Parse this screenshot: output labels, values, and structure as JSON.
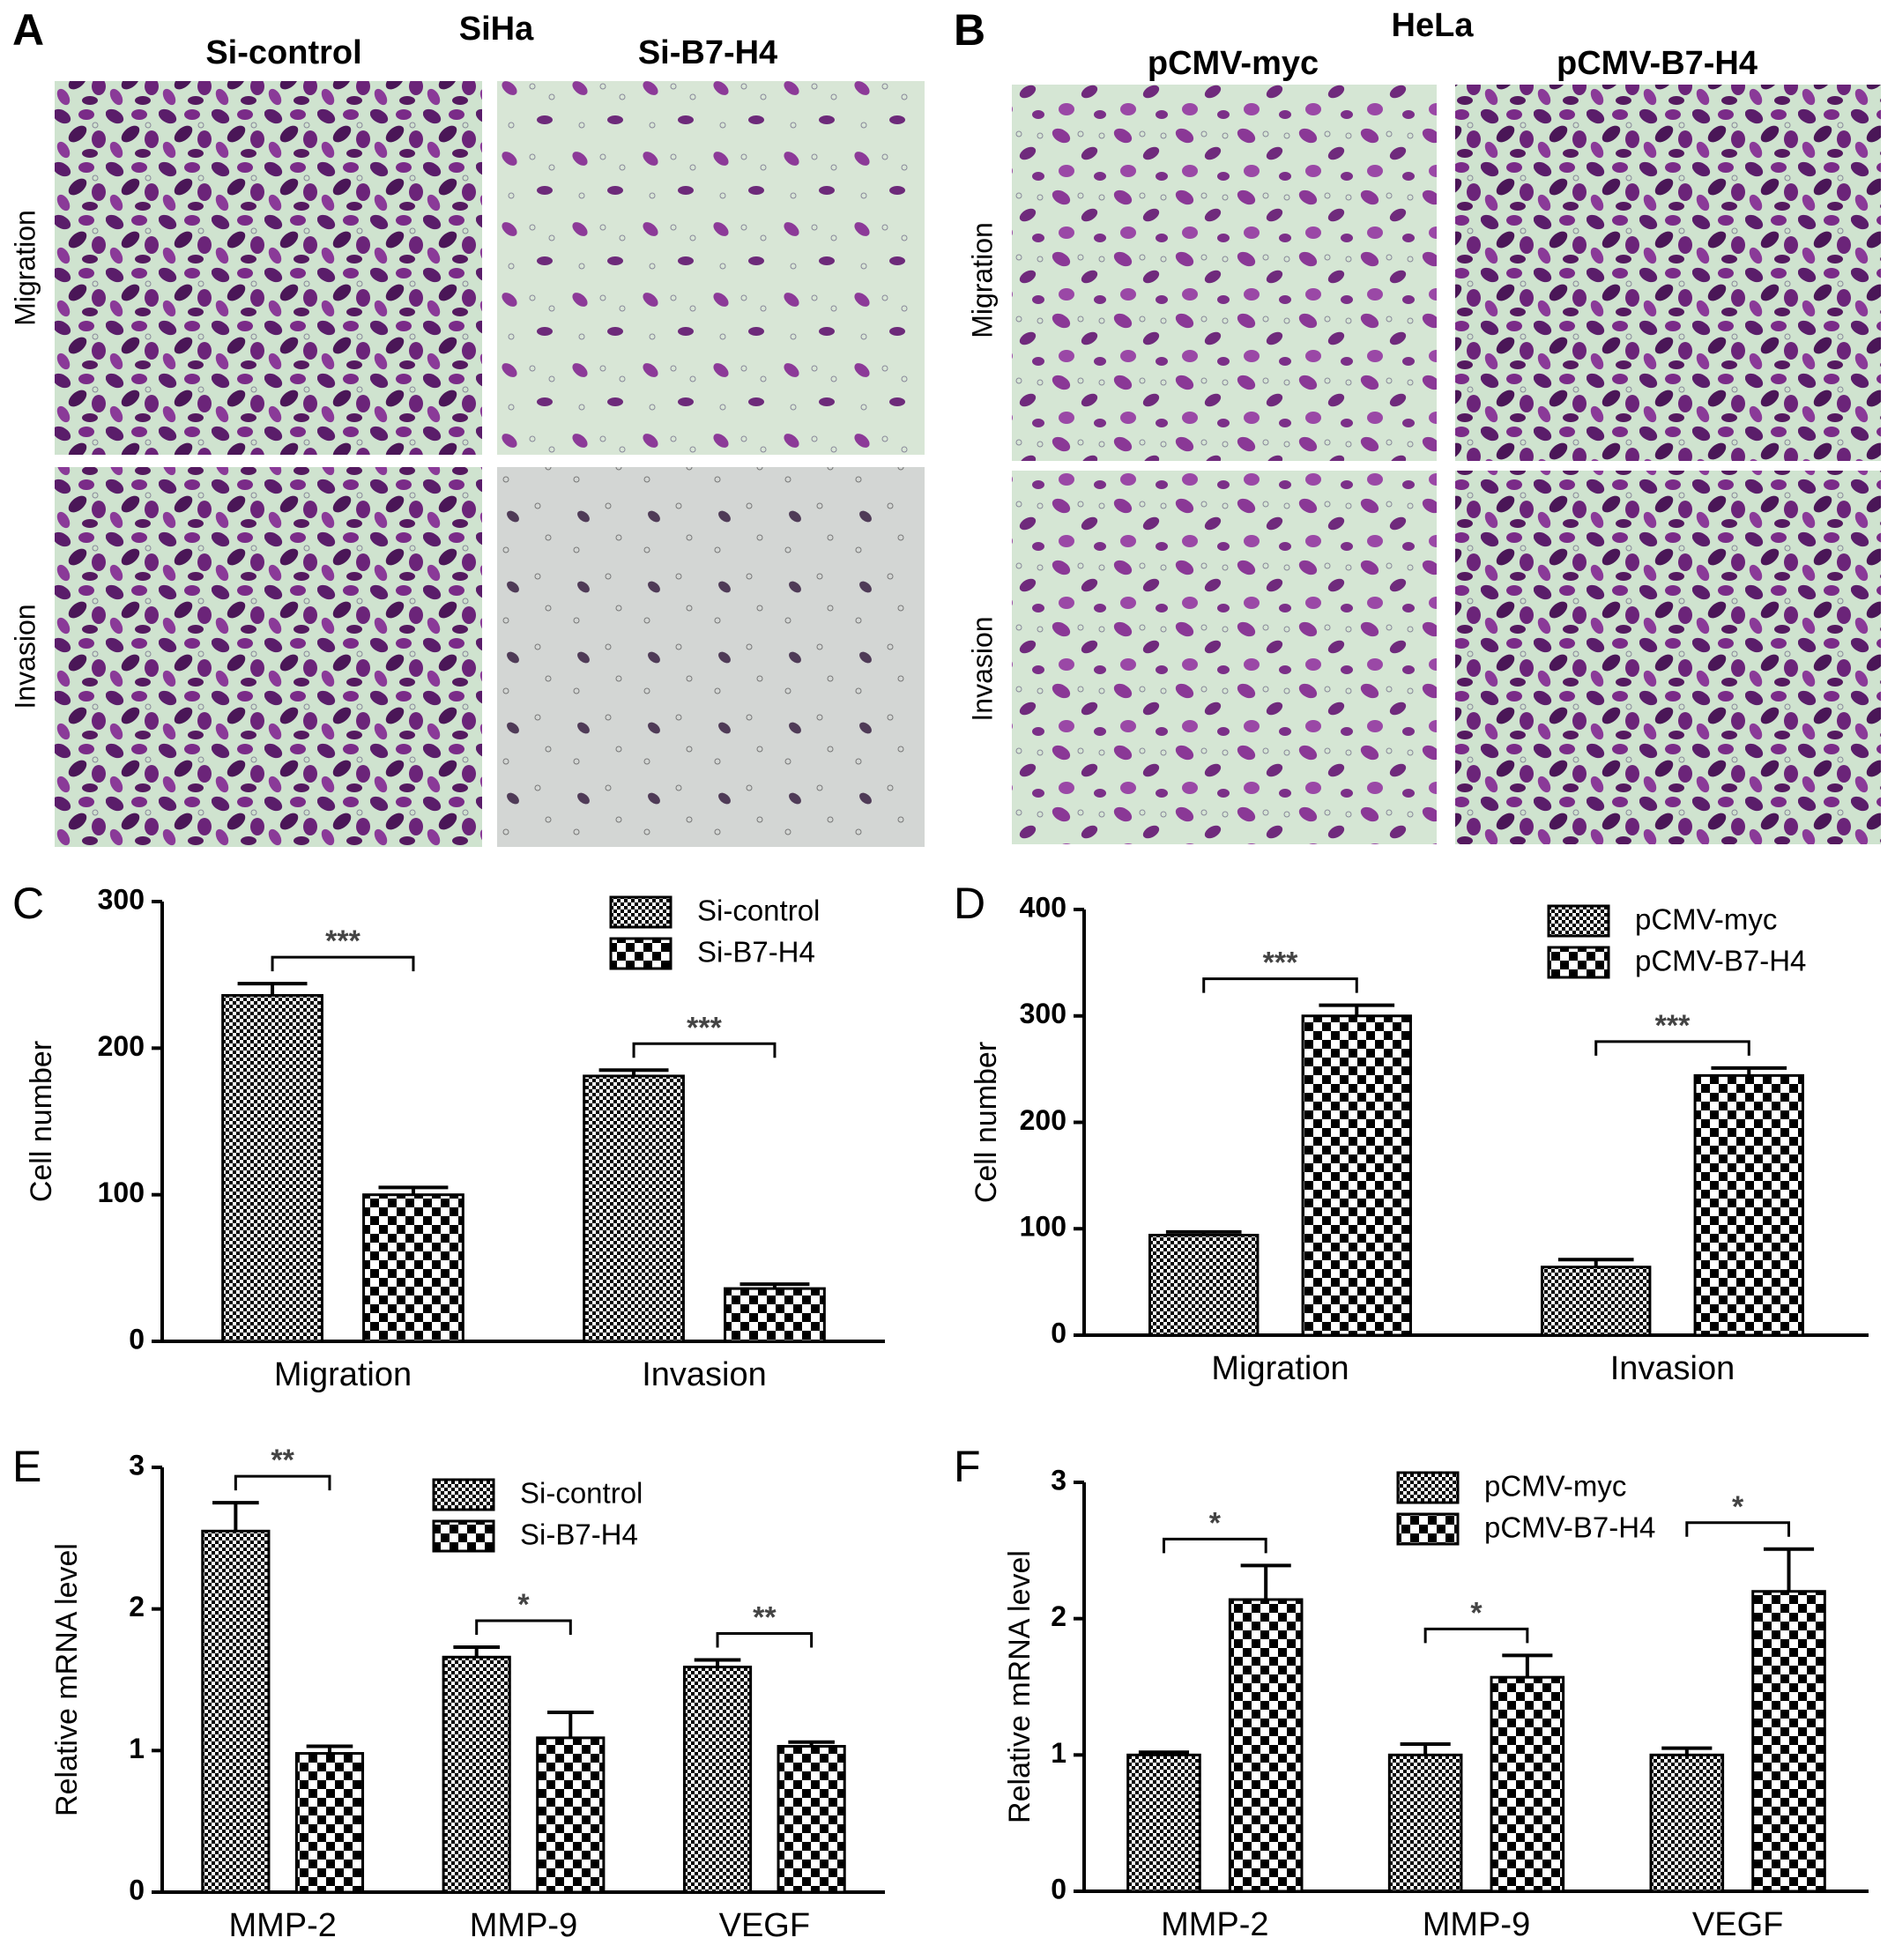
{
  "figure": {
    "A": {
      "letter": "A",
      "cell_line": "SiHa",
      "columns": [
        "Si-control",
        "Si-B7-H4"
      ],
      "rows": [
        "Migration",
        "Invasion"
      ]
    },
    "B": {
      "letter": "B",
      "cell_line": "HeLa",
      "columns": [
        "pCMV-myc",
        "pCMV-B7-H4"
      ],
      "rows": [
        "Migration",
        "Invasion"
      ]
    }
  },
  "chart_data": [
    {
      "type": "bar",
      "panel": "C",
      "ylabel": "Cell number",
      "categories": [
        "Migration",
        "Invasion"
      ],
      "series": [
        {
          "name": "Si-control",
          "color": "#000000",
          "pattern": "fine-checker",
          "values": [
            236,
            181
          ],
          "errors": [
            8,
            4
          ]
        },
        {
          "name": "Si-B7-H4",
          "color": "#000000",
          "pattern": "coarse-checker",
          "values": [
            100,
            36
          ],
          "errors": [
            5,
            3
          ]
        }
      ],
      "annotations": [
        "***",
        "***"
      ],
      "ylim": [
        0,
        300
      ],
      "yticks": [
        0,
        100,
        200,
        300
      ]
    },
    {
      "type": "bar",
      "panel": "D",
      "ylabel": "Cell number",
      "categories": [
        "Migration",
        "Invasion"
      ],
      "series": [
        {
          "name": "pCMV-myc",
          "color": "#000000",
          "pattern": "fine-checker",
          "values": [
            94,
            64
          ],
          "errors": [
            3,
            7
          ]
        },
        {
          "name": "pCMV-B7-H4",
          "color": "#000000",
          "pattern": "coarse-checker",
          "values": [
            300,
            244
          ],
          "errors": [
            10,
            7
          ]
        }
      ],
      "annotations": [
        "***",
        "***"
      ],
      "ylim": [
        0,
        400
      ],
      "yticks": [
        0,
        100,
        200,
        300,
        400
      ]
    },
    {
      "type": "bar",
      "panel": "E",
      "ylabel": "Relative mRNA level",
      "categories": [
        "MMP-2",
        "MMP-9",
        "VEGF"
      ],
      "series": [
        {
          "name": "Si-control",
          "color": "#000000",
          "pattern": "fine-checker",
          "values": [
            2.55,
            1.66,
            1.59
          ],
          "errors": [
            0.2,
            0.07,
            0.05
          ]
        },
        {
          "name": "Si-B7-H4",
          "color": "#000000",
          "pattern": "coarse-checker",
          "values": [
            0.98,
            1.09,
            1.03
          ],
          "errors": [
            0.05,
            0.18,
            0.03
          ]
        }
      ],
      "annotations": [
        "**",
        "*",
        "**"
      ],
      "ylim": [
        0,
        3
      ],
      "yticks": [
        0,
        1,
        2,
        3
      ]
    },
    {
      "type": "bar",
      "panel": "F",
      "ylabel": "Relative mRNA level",
      "categories": [
        "MMP-2",
        "MMP-9",
        "VEGF"
      ],
      "series": [
        {
          "name": "pCMV-myc",
          "color": "#000000",
          "pattern": "fine-checker",
          "values": [
            1.0,
            1.0,
            1.0
          ],
          "errors": [
            0.02,
            0.08,
            0.05
          ]
        },
        {
          "name": "pCMV-B7-H4",
          "color": "#000000",
          "pattern": "coarse-checker",
          "values": [
            2.14,
            1.57,
            2.2
          ],
          "errors": [
            0.25,
            0.16,
            0.31
          ]
        }
      ],
      "annotations": [
        "*",
        "*",
        "*"
      ],
      "ylim": [
        0,
        3
      ],
      "yticks": [
        0,
        1,
        2,
        3
      ]
    }
  ]
}
